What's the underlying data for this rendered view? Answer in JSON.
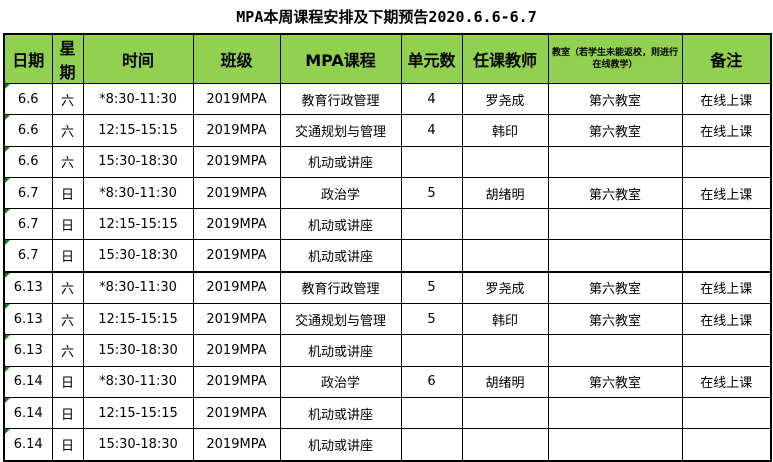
{
  "title": "MPA本周课程安排及下期预告2020.6.6-6.7",
  "headers": [
    "日期",
    "星期",
    "时间",
    "班级",
    "MPA课程",
    "单元数",
    "任课教师",
    "教室（若学生未能返校，则进行在线教学）",
    "备注"
  ],
  "header_color": "#92d050",
  "rows": [
    [
      "6.6",
      "六",
      "*8:30-11:30",
      "2019MPA",
      "教育行政管理",
      "4",
      "罗尧成",
      "第六教室",
      "在线上课"
    ],
    [
      "6.6",
      "六",
      "12:15-15:15",
      "2019MPA",
      "交通规划与管理",
      "4",
      "韩印",
      "第六教室",
      "在线上课"
    ],
    [
      "6.6",
      "六",
      "15:30-18:30",
      "2019MPA",
      "机动或讲座",
      "",
      "",
      "",
      ""
    ],
    [
      "6.7",
      "日",
      "*8:30-11:30",
      "2019MPA",
      "政治学",
      "5",
      "胡绪明",
      "第六教室",
      "在线上课"
    ],
    [
      "6.7",
      "日",
      "12:15-15:15",
      "2019MPA",
      "机动或讲座",
      "",
      "",
      "",
      ""
    ],
    [
      "6.7",
      "日",
      "15:30-18:30",
      "2019MPA",
      "机动或讲座",
      "",
      "",
      "",
      ""
    ],
    [
      "6.13",
      "六",
      "*8:30-11:30",
      "2019MPA",
      "教育行政管理",
      "5",
      "罗尧成",
      "第六教室",
      "在线上课"
    ],
    [
      "6.13",
      "六",
      "12:15-15:15",
      "2019MPA",
      "交通规划与管理",
      "5",
      "韩印",
      "第六教室",
      "在线上课"
    ],
    [
      "6.13",
      "六",
      "15:30-18:30",
      "2019MPA",
      "机动或讲座",
      "",
      "",
      "",
      ""
    ],
    [
      "6.14",
      "日",
      "*8:30-11:30",
      "2019MPA",
      "政治学",
      "6",
      "胡绪明",
      "第六教室",
      "在线上课"
    ],
    [
      "6.14",
      "日",
      "12:15-15:15",
      "2019MPA",
      "机动或讲座",
      "",
      "",
      "",
      ""
    ],
    [
      "6.14",
      "日",
      "15:30-18:30",
      "2019MPA",
      "机动或讲座",
      "",
      "",
      "",
      ""
    ]
  ]
}
